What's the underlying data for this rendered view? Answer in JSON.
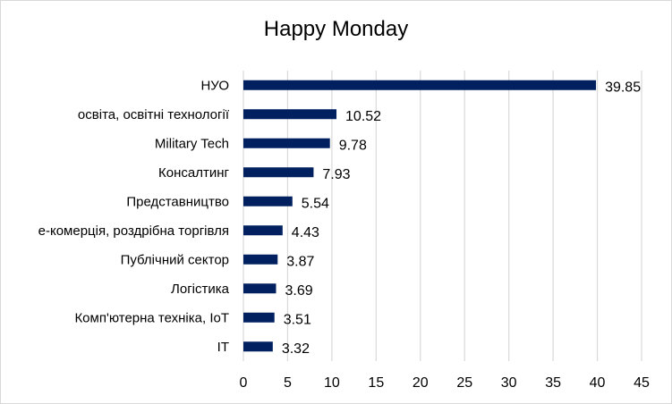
{
  "chart_data": {
    "type": "bar",
    "orientation": "horizontal",
    "title": "Happy Monday",
    "categories": [
      "НУО",
      "освіта, освітні технології",
      "Military Tech",
      "Консалтинг",
      "Представництво",
      "е-комерція, роздрібна торгівля",
      "Публічний сектор",
      "Логістика",
      "Комп'ютерна техніка, IoT",
      "IT"
    ],
    "values": [
      39.85,
      10.52,
      9.78,
      7.93,
      5.54,
      4.43,
      3.87,
      3.69,
      3.51,
      3.32
    ],
    "value_labels": [
      "39.85",
      "10.52",
      "9.78",
      "7.93",
      "5.54",
      "4.43",
      "3.87",
      "3.69",
      "3.51",
      "3.32"
    ],
    "xlim": [
      0,
      45
    ],
    "xticks": [
      "0",
      "5",
      "10",
      "15",
      "20",
      "25",
      "30",
      "35",
      "40",
      "45"
    ],
    "xlabel": "",
    "ylabel": "",
    "grid": "vertical",
    "legend": "none",
    "bar_color": "#002060",
    "grid_color": "#d9d9d9"
  }
}
